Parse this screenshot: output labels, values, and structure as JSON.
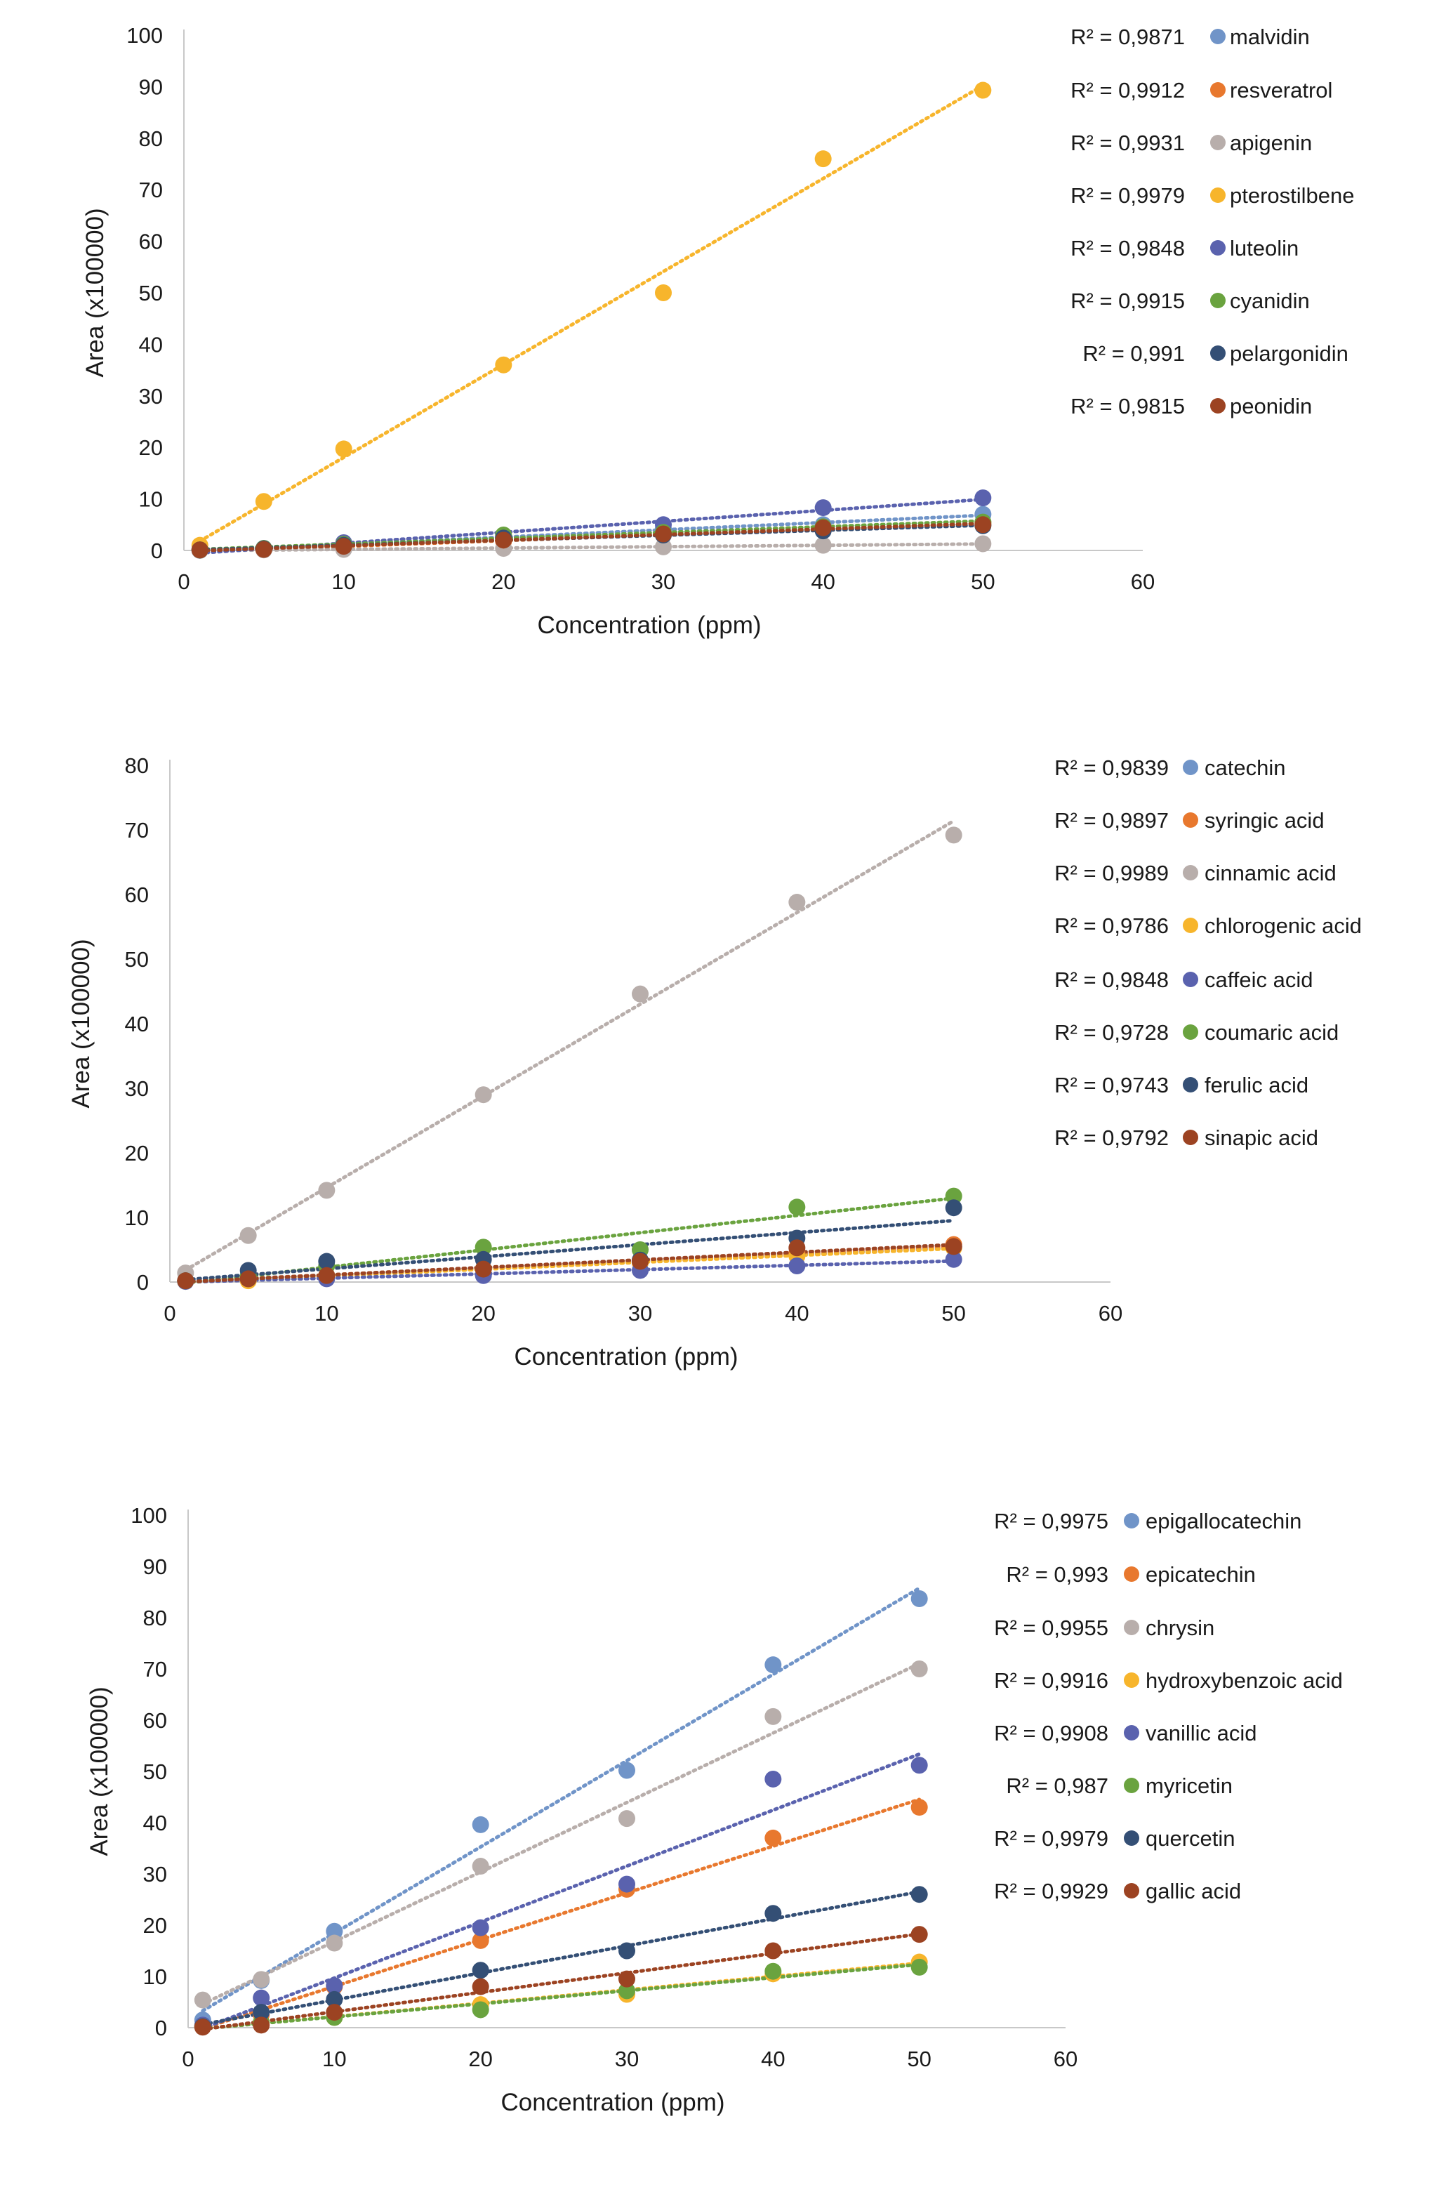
{
  "chart_data": [
    {
      "type": "scatter",
      "xlabel": "Concentration (ppm)",
      "ylabel": "Area (x100000)",
      "xlim": [
        0,
        60
      ],
      "ylim": [
        0,
        100
      ],
      "xticks": [
        0,
        10,
        20,
        30,
        40,
        50,
        60
      ],
      "yticks": [
        0,
        10,
        20,
        30,
        40,
        50,
        60,
        70,
        80,
        90,
        100
      ],
      "trendline": "linear, dotted",
      "legend_position": "right",
      "series": [
        {
          "name": "malvidin",
          "r2_label": "R² = 0,9871",
          "color": "#7094c8",
          "x": [
            1,
            5,
            10,
            20,
            30,
            40,
            50
          ],
          "y": [
            0.1,
            0.3,
            1.0,
            2.8,
            4.2,
            5.0,
            7.0
          ]
        },
        {
          "name": "resveratrol",
          "r2_label": "R² = 0,9912",
          "color": "#e8782e",
          "x": [
            1,
            5,
            10,
            20,
            30,
            40,
            50
          ],
          "y": [
            0.1,
            0.2,
            0.6,
            1.8,
            3.0,
            4.0,
            5.4
          ]
        },
        {
          "name": "apigenin",
          "r2_label": "R² = 0,9931",
          "color": "#b8aeab",
          "x": [
            1,
            5,
            10,
            20,
            30,
            40,
            50
          ],
          "y": [
            0.0,
            0.1,
            0.2,
            0.4,
            0.7,
            1.0,
            1.3
          ]
        },
        {
          "name": "pterostilbene",
          "r2_label": "R² = 0,9979",
          "color": "#f7b52c",
          "x": [
            1,
            5,
            10,
            20,
            30,
            40,
            50
          ],
          "y": [
            1.0,
            9.5,
            19.7,
            36.0,
            50.0,
            76.0,
            89.3
          ]
        },
        {
          "name": "luteolin",
          "r2_label": "R² = 0,9848",
          "color": "#5a62ae",
          "x": [
            1,
            5,
            10,
            20,
            30,
            40,
            50
          ],
          "y": [
            0.1,
            0.4,
            1.5,
            2.6,
            5.0,
            8.3,
            10.2
          ]
        },
        {
          "name": "cyanidin",
          "r2_label": "R² = 0,9915",
          "color": "#6aa33f",
          "x": [
            1,
            5,
            10,
            20,
            30,
            40,
            50
          ],
          "y": [
            0.1,
            0.4,
            1.2,
            3.0,
            3.5,
            4.6,
            5.5
          ]
        },
        {
          "name": "pelargonidin",
          "r2_label": "R² = 0,991",
          "color": "#344f75",
          "x": [
            1,
            5,
            10,
            20,
            30,
            40,
            50
          ],
          "y": [
            0.1,
            0.3,
            1.0,
            2.4,
            3.0,
            3.8,
            4.8
          ]
        },
        {
          "name": "peonidin",
          "r2_label": "R² = 0,9815",
          "color": "#9c4322",
          "x": [
            1,
            5,
            10,
            20,
            30,
            40,
            50
          ],
          "y": [
            0.1,
            0.2,
            0.8,
            2.0,
            3.2,
            4.4,
            5.0
          ]
        }
      ]
    },
    {
      "type": "scatter",
      "xlabel": "Concentration (ppm)",
      "ylabel": "Area (x100000)",
      "xlim": [
        0,
        60
      ],
      "ylim": [
        0,
        80
      ],
      "xticks": [
        0,
        10,
        20,
        30,
        40,
        50,
        60
      ],
      "yticks": [
        0,
        10,
        20,
        30,
        40,
        50,
        60,
        70,
        80
      ],
      "trendline": "linear, dotted",
      "legend_position": "right",
      "series": [
        {
          "name": "catechin",
          "r2_label": "R² = 0,9839",
          "color": "#7094c8",
          "x": [
            1,
            5,
            10,
            20,
            30,
            40,
            50
          ],
          "y": [
            0.2,
            0.8,
            1.0,
            2.0,
            3.0,
            4.2,
            5.5
          ]
        },
        {
          "name": "syringic acid",
          "r2_label": "R² = 0,9897",
          "color": "#e8782e",
          "x": [
            1,
            5,
            10,
            20,
            30,
            40,
            50
          ],
          "y": [
            0.2,
            0.8,
            1.0,
            2.0,
            3.0,
            4.5,
            5.8
          ]
        },
        {
          "name": "cinnamic acid",
          "r2_label": "R² = 0,9989",
          "color": "#b8aeab",
          "x": [
            1,
            5,
            10,
            20,
            30,
            40,
            50
          ],
          "y": [
            1.4,
            7.2,
            14.2,
            29.0,
            44.6,
            58.8,
            69.2
          ]
        },
        {
          "name": "chlorogenic acid",
          "r2_label": "R² = 0,9786",
          "color": "#f7b52c",
          "x": [
            1,
            5,
            10,
            20,
            30,
            40,
            50
          ],
          "y": [
            0.1,
            0.2,
            1.0,
            2.0,
            3.0,
            4.0,
            5.3
          ]
        },
        {
          "name": "caffeic acid",
          "r2_label": "R² = 0,9848",
          "color": "#5a62ae",
          "x": [
            1,
            5,
            10,
            20,
            30,
            40,
            50
          ],
          "y": [
            0.1,
            0.5,
            0.5,
            1.0,
            1.8,
            2.5,
            3.5
          ]
        },
        {
          "name": "coumaric acid",
          "r2_label": "R² = 0,9728",
          "color": "#6aa33f",
          "x": [
            1,
            5,
            10,
            20,
            30,
            40,
            50
          ],
          "y": [
            0.2,
            1.0,
            2.5,
            5.4,
            5.0,
            11.6,
            13.3
          ]
        },
        {
          "name": "ferulic acid",
          "r2_label": "R² = 0,9743",
          "color": "#344f75",
          "x": [
            1,
            5,
            10,
            20,
            30,
            40,
            50
          ],
          "y": [
            0.2,
            1.8,
            3.2,
            3.5,
            3.4,
            6.8,
            11.5
          ]
        },
        {
          "name": "sinapic acid",
          "r2_label": "R² = 0,9792",
          "color": "#9c4322",
          "x": [
            1,
            5,
            10,
            20,
            30,
            40,
            50
          ],
          "y": [
            0.2,
            0.5,
            1.0,
            2.0,
            3.2,
            5.3,
            5.5
          ]
        }
      ]
    },
    {
      "type": "scatter",
      "xlabel": "Concentration (ppm)",
      "ylabel": "Area (x100000)",
      "xlim": [
        0,
        60
      ],
      "ylim": [
        0,
        100
      ],
      "xticks": [
        0,
        10,
        20,
        30,
        40,
        50,
        60
      ],
      "yticks": [
        0,
        10,
        20,
        30,
        40,
        50,
        60,
        70,
        80,
        90,
        100
      ],
      "trendline": "linear, dotted",
      "legend_position": "right",
      "series": [
        {
          "name": "epigallocatechin",
          "r2_label": "R² = 0,9975",
          "color": "#7094c8",
          "x": [
            1,
            5,
            10,
            20,
            30,
            40,
            50
          ],
          "y": [
            1.5,
            9.2,
            18.8,
            39.6,
            50.2,
            70.8,
            83.7
          ]
        },
        {
          "name": "epicatechin",
          "r2_label": "R² = 0,993",
          "color": "#e8782e",
          "x": [
            1,
            5,
            10,
            20,
            30,
            40,
            50
          ],
          "y": [
            0.3,
            2.5,
            8.0,
            17.0,
            27.0,
            37.0,
            43.0
          ]
        },
        {
          "name": "chrysin",
          "r2_label": "R² = 0,9955",
          "color": "#b8aeab",
          "x": [
            1,
            5,
            10,
            20,
            30,
            40,
            50
          ],
          "y": [
            5.4,
            9.4,
            16.5,
            31.5,
            40.8,
            60.7,
            70.0
          ]
        },
        {
          "name": "hydroxybenzoic acid",
          "r2_label": "R² = 0,9916",
          "color": "#f7b52c",
          "x": [
            1,
            5,
            10,
            20,
            30,
            40,
            50
          ],
          "y": [
            0.2,
            1.0,
            2.0,
            4.5,
            6.5,
            10.5,
            12.8
          ]
        },
        {
          "name": "vanillic acid",
          "r2_label": "R² = 0,9908",
          "color": "#5a62ae",
          "x": [
            1,
            5,
            10,
            20,
            30,
            40,
            50
          ],
          "y": [
            0.5,
            5.8,
            8.2,
            19.5,
            28.0,
            48.5,
            51.2
          ]
        },
        {
          "name": "myricetin",
          "r2_label": "R² = 0,987",
          "color": "#6aa33f",
          "x": [
            1,
            5,
            10,
            20,
            30,
            40,
            50
          ],
          "y": [
            0.2,
            1.0,
            2.0,
            3.5,
            7.2,
            11.0,
            11.8
          ]
        },
        {
          "name": "quercetin",
          "r2_label": "R² = 0,9979",
          "color": "#344f75",
          "x": [
            1,
            5,
            10,
            20,
            30,
            40,
            50
          ],
          "y": [
            0.2,
            3.0,
            5.5,
            11.2,
            15.0,
            22.3,
            26.0
          ]
        },
        {
          "name": "gallic acid",
          "r2_label": "R² = 0,9929",
          "color": "#9c4322",
          "x": [
            1,
            5,
            10,
            20,
            30,
            40,
            50
          ],
          "y": [
            0.1,
            0.5,
            3.0,
            8.0,
            9.5,
            15.0,
            18.2
          ]
        }
      ]
    }
  ]
}
